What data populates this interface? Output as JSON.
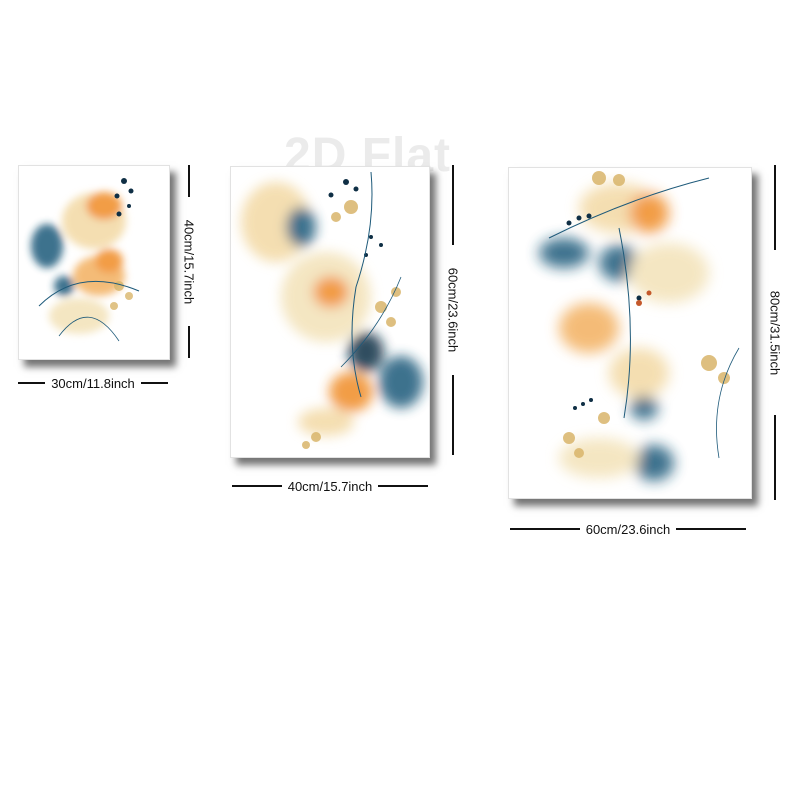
{
  "watermark": "2D Flat",
  "colors": {
    "teal": "#1e5a7a",
    "orange": "#f08c28",
    "sand": "#f3d9a4",
    "dark": "#0f2f45"
  },
  "paintings": [
    {
      "width_label": "30cm/11.8inch",
      "height_label": "40cm/15.7inch"
    },
    {
      "width_label": "40cm/15.7inch",
      "height_label": "60cm/23.6inch"
    },
    {
      "width_label": "60cm/23.6inch",
      "height_label": "80cm/31.5inch"
    }
  ]
}
